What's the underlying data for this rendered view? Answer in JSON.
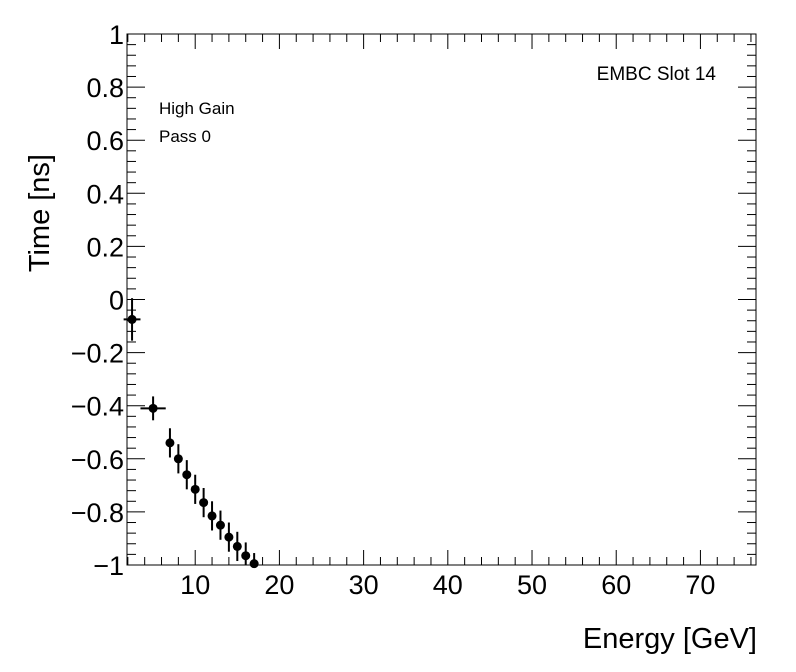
{
  "chart_data": {
    "type": "scatter",
    "title": "",
    "xlabel": "Energy [GeV]",
    "ylabel": "Time [ns]",
    "xlim": [
      1.9,
      76.6
    ],
    "ylim": [
      -1,
      1
    ],
    "x_ticks": [
      10,
      20,
      30,
      40,
      50,
      60,
      70
    ],
    "x_tick_labels": [
      "10",
      "20",
      "30",
      "40",
      "50",
      "60",
      "70"
    ],
    "y_ticks": [
      -1,
      -0.8,
      -0.6,
      -0.4,
      -0.2,
      0,
      0.2,
      0.4,
      0.6,
      0.8,
      1
    ],
    "y_tick_labels": [
      "−1",
      "−0.8",
      "−0.6",
      "−0.4",
      "−0.2",
      "0",
      "0.2",
      "0.4",
      "0.6",
      "0.8",
      "1"
    ],
    "grid": false,
    "annotations": [
      "EMBC Slot 14",
      "High Gain",
      "Pass 0"
    ],
    "series": [
      {
        "marker_color": "#000000",
        "points": [
          {
            "x": 2.5,
            "y": -0.075,
            "xerr": 1.0,
            "yerr": 0.08
          },
          {
            "x": 5.0,
            "y": -0.41,
            "xerr": 1.5,
            "yerr": 0.045
          },
          {
            "x": 7.0,
            "y": -0.54,
            "xerr": 0,
            "yerr": 0.055
          },
          {
            "x": 8.0,
            "y": -0.6,
            "xerr": 0,
            "yerr": 0.055
          },
          {
            "x": 9.0,
            "y": -0.66,
            "xerr": 0,
            "yerr": 0.055
          },
          {
            "x": 10.0,
            "y": -0.715,
            "xerr": 0,
            "yerr": 0.055
          },
          {
            "x": 11.0,
            "y": -0.765,
            "xerr": 0,
            "yerr": 0.055
          },
          {
            "x": 12.0,
            "y": -0.815,
            "xerr": 0,
            "yerr": 0.055
          },
          {
            "x": 13.0,
            "y": -0.85,
            "xerr": 0,
            "yerr": 0.055
          },
          {
            "x": 14.0,
            "y": -0.895,
            "xerr": 0,
            "yerr": 0.055
          },
          {
            "x": 15.0,
            "y": -0.93,
            "xerr": 0,
            "yerr": 0.055
          },
          {
            "x": 16.0,
            "y": -0.965,
            "xerr": 0,
            "yerr": 0.05
          },
          {
            "x": 17.0,
            "y": -0.995,
            "xerr": 0,
            "yerr": 0.04
          }
        ]
      }
    ]
  }
}
